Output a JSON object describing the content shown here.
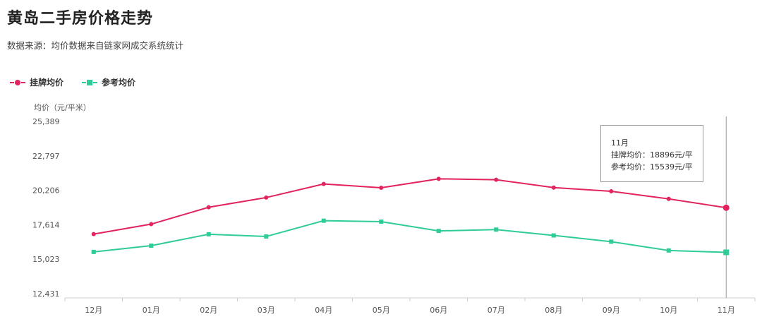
{
  "header": {
    "title": "黄岛二手房价格走势",
    "subtitle": "数据来源：均价数据来自链家网成交系统统计"
  },
  "tooltip": {
    "month": "11月",
    "listing_line": "挂牌均价：18896元/平",
    "reference_line": "参考均价：15539元/平"
  },
  "colors": {
    "listing": "#e2245e",
    "reference": "#2fcc98"
  },
  "chart_data": {
    "type": "line",
    "ylabel": "均价（元/平米）",
    "categories": [
      "12月",
      "01月",
      "02月",
      "03月",
      "04月",
      "05月",
      "06月",
      "07月",
      "08月",
      "09月",
      "10月",
      "11月"
    ],
    "yticks": [
      "25,389",
      "22,797",
      "20,206",
      "17,614",
      "15,023",
      "12,431"
    ],
    "ylim": [
      12431,
      25389
    ],
    "legend_position": "top-left",
    "series": [
      {
        "name": "挂牌均价",
        "color": "#e2245e",
        "marker": "circle",
        "values": [
          16910,
          17660,
          18930,
          19660,
          20680,
          20400,
          21070,
          21000,
          20410,
          20130,
          19560,
          18896
        ]
      },
      {
        "name": "参考均价",
        "color": "#2fcc98",
        "marker": "square",
        "values": [
          15570,
          16040,
          16900,
          16730,
          17920,
          17850,
          17150,
          17250,
          16810,
          16340,
          15680,
          15539
        ]
      }
    ],
    "highlight_category": "11月"
  }
}
